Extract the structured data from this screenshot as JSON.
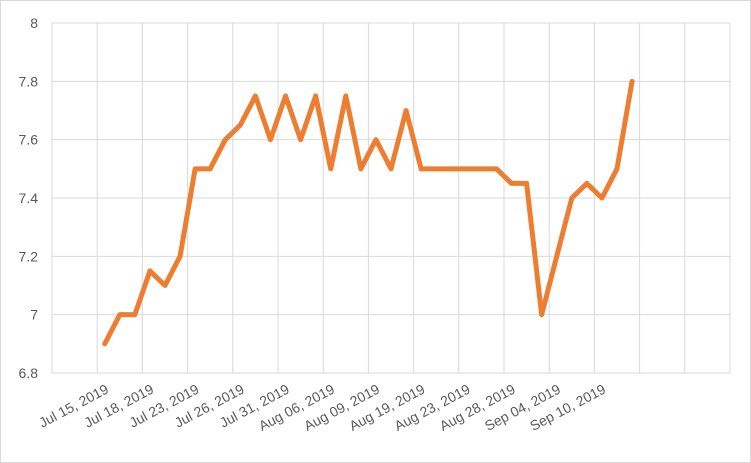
{
  "chart_data": {
    "type": "line",
    "categories": [
      "Jul 15, 2019",
      null,
      null,
      "Jul 18, 2019",
      null,
      null,
      "Jul 23, 2019",
      null,
      null,
      "Jul 26, 2019",
      null,
      null,
      "Jul 31, 2019",
      null,
      null,
      "Aug 06, 2019",
      null,
      null,
      "Aug 09, 2019",
      null,
      null,
      "Aug 19, 2019",
      null,
      null,
      "Aug 23, 2019",
      null,
      null,
      "Aug 28, 2019",
      null,
      null,
      "Sep 04, 2019",
      null,
      null,
      "Sep 10, 2019",
      null,
      null
    ],
    "values": [
      6.9,
      7.0,
      7.0,
      7.15,
      7.1,
      7.2,
      7.5,
      7.5,
      7.6,
      7.65,
      7.75,
      7.6,
      7.75,
      7.6,
      7.75,
      7.5,
      7.75,
      7.5,
      7.6,
      7.5,
      7.7,
      7.5,
      7.5,
      7.5,
      7.5,
      7.5,
      7.5,
      7.45,
      7.45,
      7.0,
      7.2,
      7.4,
      7.45,
      7.4,
      7.5,
      7.8
    ],
    "color": "#ED7D31",
    "ylim": [
      6.8,
      8
    ],
    "yticks": [
      6.8,
      7,
      7.2,
      7.4,
      7.6,
      7.8,
      8
    ],
    "grid": true
  }
}
